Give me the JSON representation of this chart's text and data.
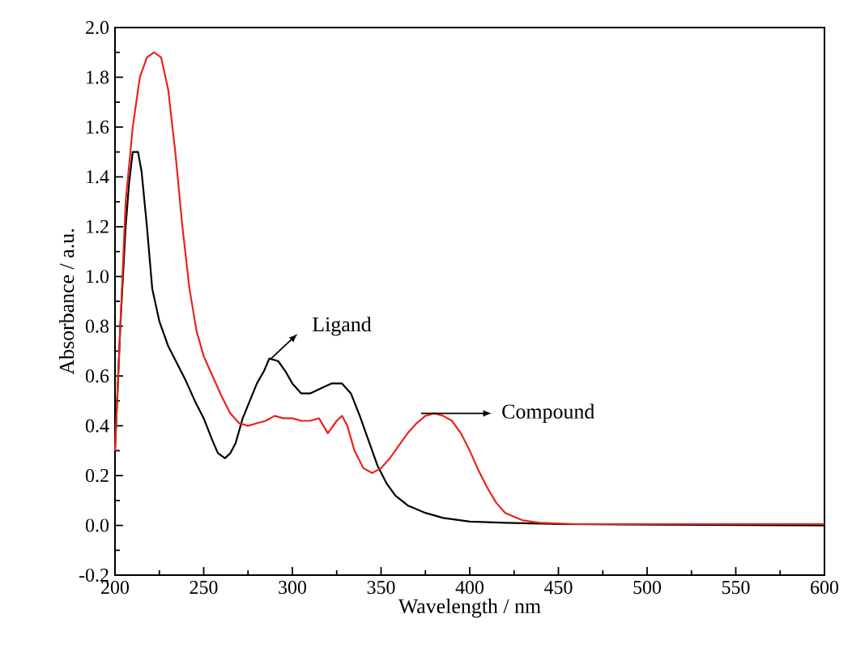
{
  "chart_data": {
    "type": "line",
    "xlabel": "Wavelength / nm",
    "ylabel": "Absorbance / a.u.",
    "xlim": [
      200,
      600
    ],
    "xticks": [
      200,
      250,
      300,
      350,
      400,
      450,
      500,
      550,
      600
    ],
    "ylim": [
      -0.2,
      2.0
    ],
    "yticks": [
      {
        "value": -0.2,
        "label": "-0.2"
      },
      {
        "value": 0.0,
        "label": "0.0"
      },
      {
        "value": 0.2,
        "label": "0.2"
      },
      {
        "value": 0.4,
        "label": "0.4"
      },
      {
        "value": 0.6,
        "label": "0.6"
      },
      {
        "value": 0.8,
        "label": "0.8"
      },
      {
        "value": 1.0,
        "label": "1.0"
      },
      {
        "value": 1.2,
        "label": "1.2"
      },
      {
        "value": 1.4,
        "label": "1.4"
      },
      {
        "value": 1.6,
        "label": "1.6"
      },
      {
        "value": 1.8,
        "label": "1.8"
      },
      {
        "value": 2.0,
        "label": "2.0"
      }
    ],
    "series": [
      {
        "color": "#000000",
        "x": [
          200,
          203,
          206,
          208,
          210,
          213,
          215,
          218,
          221,
          225,
          230,
          235,
          240,
          245,
          250,
          255,
          258,
          262,
          265,
          268,
          272,
          276,
          280,
          284,
          287,
          292,
          296,
          300,
          305,
          310,
          316,
          322,
          328,
          333,
          338,
          343,
          348,
          353,
          358,
          365,
          375,
          385,
          400,
          420,
          450,
          500,
          600
        ],
        "values": [
          0.3,
          0.8,
          1.2,
          1.38,
          1.5,
          1.5,
          1.42,
          1.2,
          0.95,
          0.82,
          0.72,
          0.65,
          0.58,
          0.5,
          0.43,
          0.34,
          0.29,
          0.27,
          0.29,
          0.33,
          0.43,
          0.5,
          0.57,
          0.62,
          0.67,
          0.66,
          0.62,
          0.57,
          0.53,
          0.53,
          0.55,
          0.57,
          0.57,
          0.53,
          0.44,
          0.34,
          0.24,
          0.17,
          0.12,
          0.08,
          0.05,
          0.03,
          0.015,
          0.01,
          0.005,
          0.003,
          0.0
        ]
      },
      {
        "color": "#e8231e",
        "x": [
          200,
          203,
          206,
          210,
          214,
          218,
          222,
          226,
          230,
          234,
          238,
          242,
          246,
          250,
          255,
          260,
          265,
          270,
          275,
          280,
          285,
          290,
          295,
          300,
          305,
          310,
          315,
          320,
          325,
          328,
          331,
          335,
          340,
          345,
          350,
          355,
          360,
          365,
          370,
          375,
          380,
          385,
          390,
          395,
          400,
          405,
          410,
          415,
          420,
          430,
          440,
          460,
          600
        ],
        "values": [
          0.3,
          0.8,
          1.3,
          1.6,
          1.8,
          1.88,
          1.9,
          1.88,
          1.75,
          1.5,
          1.2,
          0.95,
          0.78,
          0.68,
          0.6,
          0.52,
          0.45,
          0.41,
          0.4,
          0.41,
          0.42,
          0.44,
          0.43,
          0.43,
          0.42,
          0.42,
          0.43,
          0.37,
          0.42,
          0.44,
          0.4,
          0.3,
          0.23,
          0.21,
          0.23,
          0.27,
          0.32,
          0.37,
          0.41,
          0.44,
          0.45,
          0.44,
          0.42,
          0.37,
          0.3,
          0.22,
          0.15,
          0.09,
          0.05,
          0.02,
          0.01,
          0.005,
          0.005
        ]
      }
    ],
    "annotations": [
      {
        "text": "Ligand",
        "x": 288,
        "y": 0.67
      },
      "Compound"
    ]
  }
}
